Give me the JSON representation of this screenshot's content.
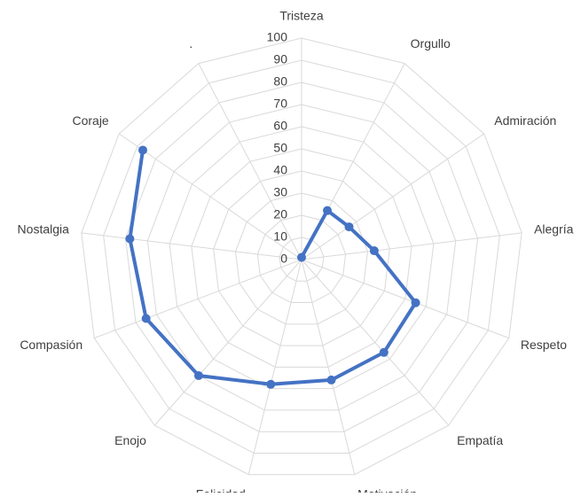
{
  "chart_data": {
    "type": "radar",
    "categories": [
      "Tristeza",
      "Orgullo",
      "Admiración",
      "Alegría",
      "Respeto",
      "Empatía",
      "Motivación",
      "Felicidad",
      "Enojo",
      "Compasión",
      "Nostalgia",
      "Coraje",
      "."
    ],
    "series": [
      {
        "color": "#4472c4",
        "values": [
          1,
          25,
          26,
          33,
          55,
          56,
          56,
          58,
          70,
          75,
          78,
          87,
          null
        ]
      }
    ],
    "ylim": [
      0,
      100
    ],
    "yticks": [
      0,
      10,
      20,
      30,
      40,
      50,
      60,
      70,
      80,
      90,
      100
    ],
    "grid": true
  }
}
